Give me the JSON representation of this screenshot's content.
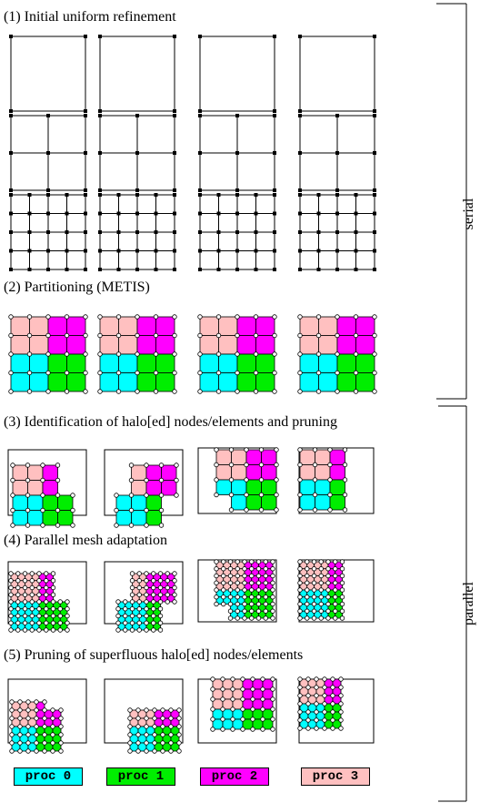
{
  "sections": [
    {
      "id": "s1",
      "title": "(1) Initial uniform refinement"
    },
    {
      "id": "s2",
      "title": "(2) Partitioning (METIS)"
    },
    {
      "id": "s3",
      "title": "(3) Identification of halo[ed] nodes/elements and pruning"
    },
    {
      "id": "s4",
      "title": "(4) Parallel mesh adaptation"
    },
    {
      "id": "s5",
      "title": "(5) Pruning of superfluous halo[ed] nodes/elements"
    }
  ],
  "side_labels": {
    "serial": "serial",
    "parallel": "parallel"
  },
  "legend": [
    {
      "label": "proc 0",
      "color": "#00ffff"
    },
    {
      "label": "proc 1",
      "color": "#00ee00"
    },
    {
      "label": "proc 2",
      "color": "#ff00ff"
    },
    {
      "label": "proc 3",
      "color": "#ffc0c0"
    }
  ],
  "colors": {
    "proc0": "#00ffff",
    "proc1": "#00ee00",
    "proc2": "#ff00ff",
    "proc3": "#ffc0c0",
    "mesh_line": "#000000",
    "node_plain": "#000000",
    "node_halo": "#ffffff"
  }
}
